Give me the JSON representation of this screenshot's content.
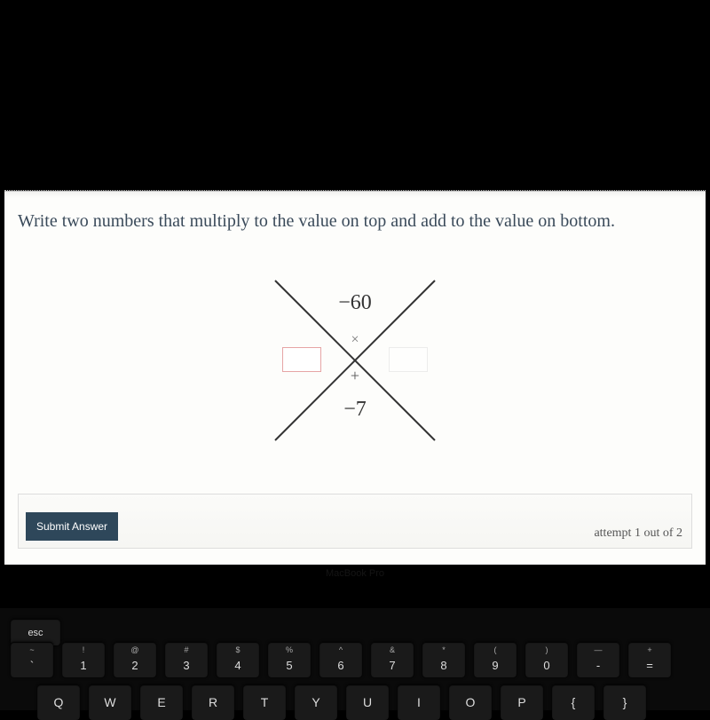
{
  "prompt_text": "Write two numbers that multiply to the value on top and add to the value on bottom.",
  "x_diagram": {
    "top_value": "−60",
    "bottom_value": "−7",
    "mult_symbol": "×",
    "plus_symbol": "+",
    "line_color": "#333333",
    "active_box_border": "#e6a5a5",
    "inactive_box_border": "#dddddd"
  },
  "submit_label": "Submit Answer",
  "attempt_text": "attempt 1 out of 2",
  "laptop_label": "MacBook Pro",
  "keyboard": {
    "row0": [
      {
        "main": "esc",
        "sup": ""
      }
    ],
    "row1": [
      {
        "sup": "~",
        "main": "`"
      },
      {
        "sup": "!",
        "main": "1"
      },
      {
        "sup": "@",
        "main": "2"
      },
      {
        "sup": "#",
        "main": "3"
      },
      {
        "sup": "$",
        "main": "4"
      },
      {
        "sup": "%",
        "main": "5"
      },
      {
        "sup": "^",
        "main": "6"
      },
      {
        "sup": "&",
        "main": "7"
      },
      {
        "sup": "*",
        "main": "8"
      },
      {
        "sup": "(",
        "main": "9"
      },
      {
        "sup": ")",
        "main": "0"
      },
      {
        "sup": "—",
        "main": "-"
      },
      {
        "sup": "+",
        "main": "="
      }
    ],
    "row2": [
      {
        "main": "Q"
      },
      {
        "main": "W"
      },
      {
        "main": "E"
      },
      {
        "main": "R"
      },
      {
        "main": "T"
      },
      {
        "main": "Y"
      },
      {
        "main": "U"
      },
      {
        "main": "I"
      },
      {
        "main": "O"
      },
      {
        "main": "P"
      },
      {
        "main": "{"
      },
      {
        "main": "}"
      }
    ]
  }
}
